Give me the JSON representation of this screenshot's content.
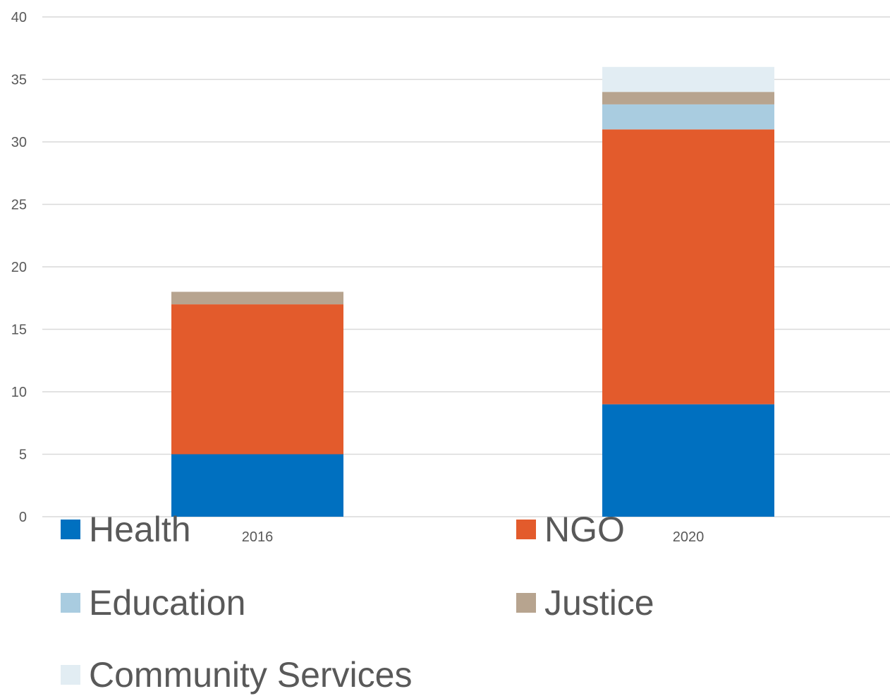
{
  "chart_data": {
    "type": "bar",
    "stacked": true,
    "categories": [
      "2016",
      "2020"
    ],
    "series": [
      {
        "name": "Health",
        "color": "#0070C0",
        "values": [
          5,
          9
        ]
      },
      {
        "name": "NGO",
        "color": "#E35B2C",
        "values": [
          12,
          22
        ]
      },
      {
        "name": "Education",
        "color": "#A9CCE0",
        "values": [
          0,
          2
        ]
      },
      {
        "name": "Justice",
        "color": "#B7A48F",
        "values": [
          1,
          1
        ]
      },
      {
        "name": "Community Services",
        "color": "#E2EDF3",
        "values": [
          0,
          2
        ]
      }
    ],
    "ylim": [
      0,
      40
    ],
    "yticks": [
      "0",
      "5",
      "10",
      "15",
      "20",
      "25",
      "30",
      "35",
      "40"
    ],
    "grid": true,
    "legend_position": "bottom",
    "title": "",
    "xlabel": "",
    "ylabel": ""
  }
}
